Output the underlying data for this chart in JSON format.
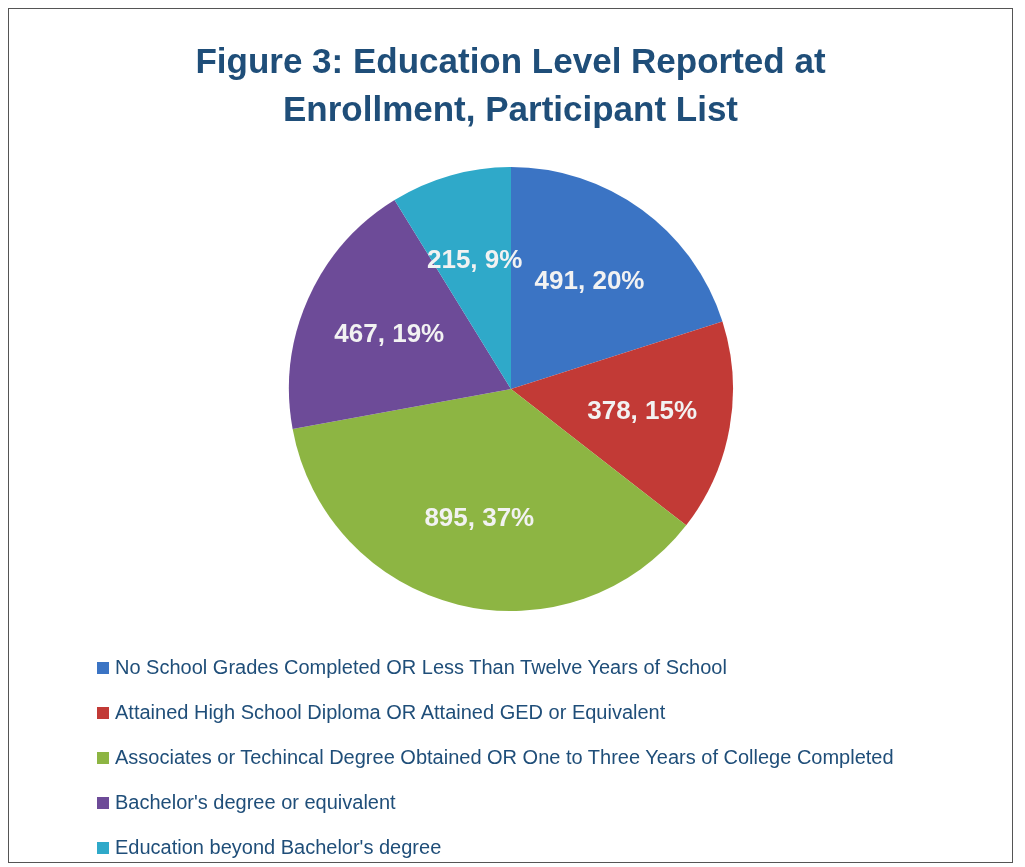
{
  "chart_data": {
    "type": "pie",
    "title": "Figure 3: Education Level Reported at Enrollment, Participant List",
    "categories": [
      "No School Grades Completed OR Less Than Twelve Years of School",
      "Attained High School Diploma OR Attained GED or Equivalent",
      "Associates or Techincal Degree Obtained OR One to Three Years of College Completed",
      "Bachelor's degree or equivalent",
      "Education beyond Bachelor's degree"
    ],
    "values": [
      491,
      378,
      895,
      467,
      215
    ],
    "colors": [
      "#3b74c4",
      "#c23a36",
      "#8db543",
      "#6d4b98",
      "#2fa9c9"
    ],
    "value_labels": [
      "491, 20%",
      "378, 15%",
      "895, 37%",
      "467, 19%",
      "215, 9%"
    ],
    "legend": "bottom"
  }
}
